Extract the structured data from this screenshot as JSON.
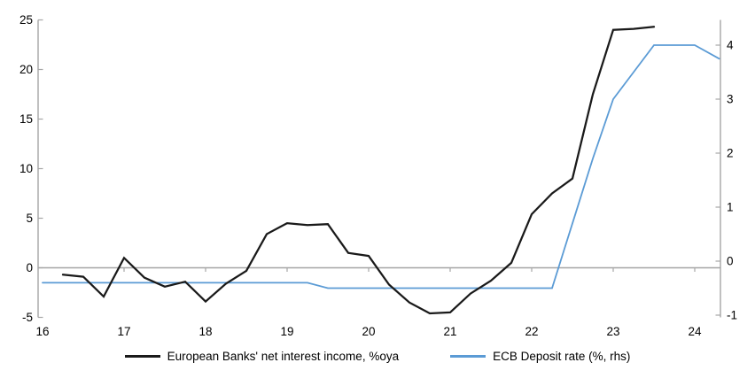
{
  "chart_data": {
    "type": "line",
    "title": "",
    "xlabel": "",
    "ylabel_left": "",
    "ylabel_right": "",
    "x_unit": "year (decimal fraction = quarter)",
    "background": "#ffffff",
    "gridlines": "zero-line-only",
    "axis_color": "#a6a6a6",
    "text_color": "#000000",
    "x_axis": {
      "ticks": [
        16,
        17,
        18,
        19,
        20,
        21,
        22,
        23,
        24
      ],
      "tick_labels": [
        "16",
        "17",
        "18",
        "19",
        "20",
        "21",
        "22",
        "23",
        "24"
      ],
      "range": [
        15.95,
        24.32
      ]
    },
    "left_axis": {
      "ticks": [
        25,
        20,
        15,
        10,
        5,
        0,
        -5
      ],
      "range": [
        -5,
        25
      ]
    },
    "right_axis": {
      "ticks": [
        4,
        3,
        2,
        1,
        0,
        -1
      ],
      "range": [
        -1.05,
        4.46
      ]
    },
    "legend_position": "bottom-center",
    "series": [
      {
        "name": "European Banks' net interest income, %oya",
        "axis": "left",
        "color": "#1a1a1a",
        "stroke_width": 2.25,
        "points": [
          [
            16.25,
            -0.7
          ],
          [
            16.5,
            -0.9
          ],
          [
            16.75,
            -2.9
          ],
          [
            17.0,
            1.0
          ],
          [
            17.25,
            -1.0
          ],
          [
            17.5,
            -1.9
          ],
          [
            17.75,
            -1.4
          ],
          [
            18.0,
            -3.4
          ],
          [
            18.25,
            -1.6
          ],
          [
            18.5,
            -0.3
          ],
          [
            18.75,
            3.4
          ],
          [
            19.0,
            4.5
          ],
          [
            19.25,
            4.3
          ],
          [
            19.5,
            4.4
          ],
          [
            19.75,
            1.5
          ],
          [
            20.0,
            1.2
          ],
          [
            20.25,
            -1.7
          ],
          [
            20.5,
            -3.5
          ],
          [
            20.75,
            -4.6
          ],
          [
            21.0,
            -4.5
          ],
          [
            21.25,
            -2.6
          ],
          [
            21.5,
            -1.3
          ],
          [
            21.75,
            0.5
          ],
          [
            22.0,
            5.4
          ],
          [
            22.25,
            7.5
          ],
          [
            22.5,
            9.0
          ],
          [
            22.75,
            17.5
          ],
          [
            23.0,
            24.0
          ],
          [
            23.25,
            24.1
          ],
          [
            23.5,
            24.3
          ]
        ]
      },
      {
        "name": "ECB Deposit rate (%, rhs)",
        "axis": "right",
        "color": "#5b9bd5",
        "stroke_width": 1.8,
        "points": [
          [
            16.0,
            -0.4
          ],
          [
            16.25,
            -0.4
          ],
          [
            16.5,
            -0.4
          ],
          [
            16.75,
            -0.4
          ],
          [
            17.0,
            -0.4
          ],
          [
            17.25,
            -0.4
          ],
          [
            17.5,
            -0.4
          ],
          [
            17.75,
            -0.4
          ],
          [
            18.0,
            -0.4
          ],
          [
            18.25,
            -0.4
          ],
          [
            18.5,
            -0.4
          ],
          [
            18.75,
            -0.4
          ],
          [
            19.0,
            -0.4
          ],
          [
            19.25,
            -0.4
          ],
          [
            19.5,
            -0.5
          ],
          [
            19.75,
            -0.5
          ],
          [
            20.0,
            -0.5
          ],
          [
            20.25,
            -0.5
          ],
          [
            20.5,
            -0.5
          ],
          [
            20.75,
            -0.5
          ],
          [
            21.0,
            -0.5
          ],
          [
            21.25,
            -0.5
          ],
          [
            21.5,
            -0.5
          ],
          [
            21.75,
            -0.5
          ],
          [
            22.0,
            -0.5
          ],
          [
            22.25,
            -0.5
          ],
          [
            22.5,
            0.7
          ],
          [
            22.75,
            1.9
          ],
          [
            23.0,
            3.0
          ],
          [
            23.25,
            3.5
          ],
          [
            23.5,
            4.0
          ],
          [
            23.75,
            4.0
          ],
          [
            24.0,
            4.0
          ],
          [
            24.3,
            3.75
          ]
        ]
      }
    ]
  }
}
